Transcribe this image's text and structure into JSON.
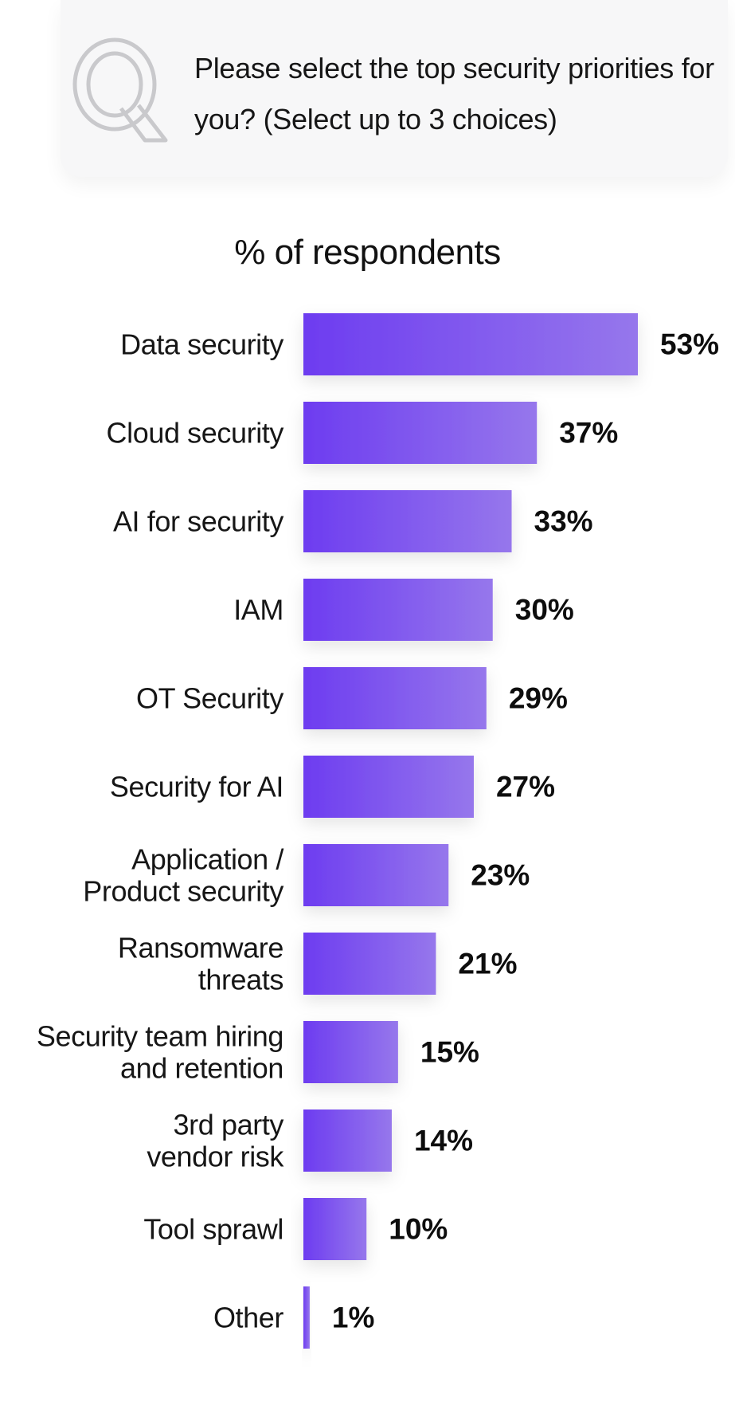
{
  "question": {
    "icon": "q-letter-icon",
    "text": "Please select the top security priorities for you? (Select up to 3 choices)"
  },
  "colors": {
    "bar_start": "#6d3cf0",
    "bar_end": "#9677ec",
    "card_bg": "#f7f7f8"
  },
  "chart_data": {
    "type": "bar",
    "orientation": "horizontal",
    "title": "% of respondents",
    "categories": [
      [
        "Data security"
      ],
      [
        "Cloud security"
      ],
      [
        "AI for security"
      ],
      [
        "IAM"
      ],
      [
        "OT Security"
      ],
      [
        "Security for AI"
      ],
      [
        "Application /",
        "Product security"
      ],
      [
        "Ransomware",
        "threats"
      ],
      [
        "Security team hiring",
        "and retention"
      ],
      [
        "3rd party",
        "vendor risk"
      ],
      [
        "Tool sprawl"
      ],
      [
        "Other"
      ]
    ],
    "values": [
      53,
      37,
      33,
      30,
      29,
      27,
      23,
      21,
      15,
      14,
      10,
      1
    ],
    "value_labels": [
      "53%",
      "37%",
      "33%",
      "30%",
      "29%",
      "27%",
      "23%",
      "21%",
      "15%",
      "14%",
      "10%",
      "1%"
    ],
    "unit": "%",
    "grid": false,
    "legend": "none"
  }
}
